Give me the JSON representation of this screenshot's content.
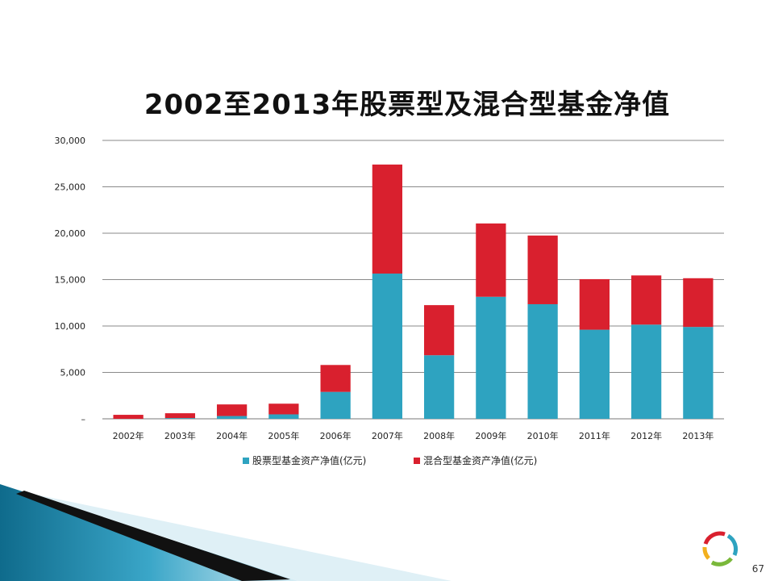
{
  "chart_data": {
    "type": "bar",
    "stacked": true,
    "title": "2002至2013年股票型及混合型基金净值",
    "categories": [
      "2002年",
      "2003年",
      "2004年",
      "2005年",
      "2006年",
      "2007年",
      "2008年",
      "2009年",
      "2010年",
      "2011年",
      "2012年",
      "2013年"
    ],
    "series": [
      {
        "name": "股票型基金资产净值(亿元)",
        "color": "#2ea3c0",
        "values": [
          0,
          80,
          300,
          480,
          2900,
          15650,
          6850,
          13150,
          12350,
          9600,
          10150,
          9900
        ]
      },
      {
        "name": "混合型基金资产净值(亿元)",
        "color": "#d9202e",
        "values": [
          430,
          520,
          1250,
          1150,
          2900,
          11750,
          5400,
          7900,
          7400,
          5450,
          5300,
          5250
        ]
      }
    ],
    "ylim": [
      0,
      30000
    ],
    "yticks": [
      0,
      5000,
      10000,
      15000,
      20000,
      25000,
      30000
    ],
    "ytick_labels": [
      "–",
      "5,000",
      "10,000",
      "15,000",
      "20,000",
      "25,000",
      "30,000"
    ],
    "grid": true,
    "legend_position": "bottom"
  },
  "page_number": "67"
}
